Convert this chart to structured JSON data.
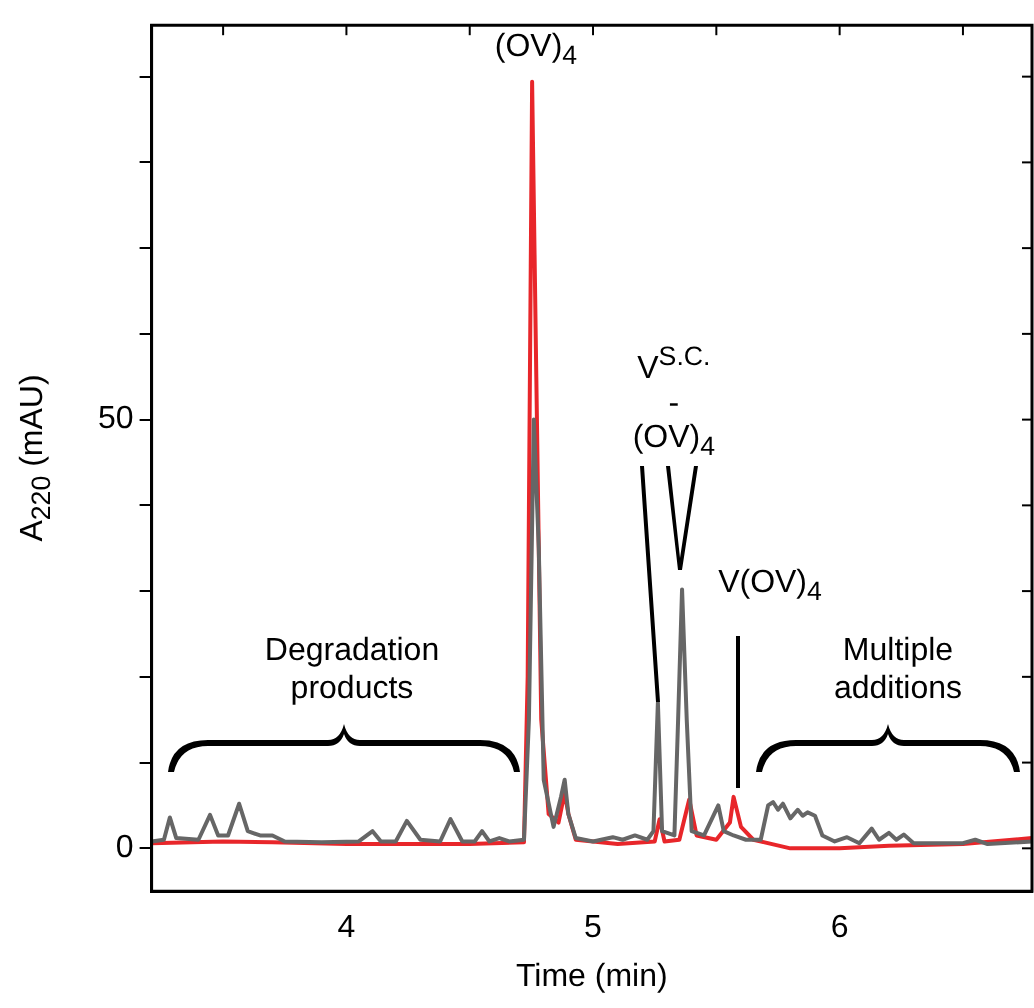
{
  "chart_data": {
    "type": "line",
    "xlabel": "Time (min)",
    "ylabel": "A$_{220}$ (mAU)",
    "xlim": [
      3.21,
      6.78
    ],
    "ylim": [
      -5,
      96
    ],
    "xticks": [
      {
        "value": 3.5,
        "label": null
      },
      4,
      {
        "value": 4.5,
        "label": null
      },
      5,
      {
        "value": 5.5,
        "label": null
      },
      6,
      {
        "value": 6.5,
        "label": null
      }
    ],
    "yticks": [
      0,
      {
        "value": 10,
        "label": null
      },
      {
        "value": 20,
        "label": null
      },
      {
        "value": 30,
        "label": null
      },
      {
        "value": 40,
        "label": null
      },
      50,
      {
        "value": 60,
        "label": null
      },
      {
        "value": 70,
        "label": null
      },
      {
        "value": 80,
        "label": null
      },
      {
        "value": 90,
        "label": null
      }
    ],
    "marker": "none",
    "line_style": "solid",
    "series": [
      {
        "color": "#666666",
        "x": [
          3.21,
          3.26,
          3.284,
          3.31,
          3.4,
          3.447,
          3.48,
          3.52,
          3.565,
          3.6,
          3.65,
          3.7,
          3.75,
          3.9,
          4.05,
          4.106,
          4.14,
          4.2,
          4.245,
          4.3,
          4.38,
          4.422,
          4.47,
          4.52,
          4.55,
          4.58,
          4.62,
          4.66,
          4.72,
          4.74,
          4.76,
          4.78,
          4.8,
          4.84,
          4.87,
          4.885,
          4.9,
          4.93,
          5.0,
          5.08,
          5.12,
          5.17,
          5.22,
          5.245,
          5.263,
          5.28,
          5.33,
          5.345,
          5.361,
          5.38,
          5.4,
          5.45,
          5.508,
          5.53,
          5.57,
          5.62,
          5.68,
          5.71,
          5.73,
          5.75,
          5.77,
          5.8,
          5.83,
          5.85,
          5.87,
          5.9,
          5.93,
          5.98,
          6.03,
          6.08,
          6.13,
          6.16,
          6.2,
          6.23,
          6.26,
          6.3,
          6.5,
          6.55,
          6.6,
          6.78
        ],
        "values": [
          0.8,
          1,
          3.6,
          1.2,
          1,
          3.9,
          1.5,
          1.5,
          5.2,
          2,
          1.5,
          1.5,
          0.8,
          0.7,
          0.8,
          2,
          0.8,
          0.8,
          3.2,
          1,
          0.8,
          3.4,
          0.8,
          0.8,
          2,
          0.8,
          1.2,
          0.8,
          1,
          15,
          50,
          35,
          8,
          2.5,
          6,
          8,
          4,
          1.2,
          0.8,
          1.3,
          1,
          1.5,
          1,
          2,
          17,
          2,
          1.5,
          15,
          30.2,
          15,
          2,
          1.5,
          5,
          2,
          1.5,
          1,
          1,
          5,
          5.4,
          4.5,
          5.2,
          3.5,
          4.5,
          3.8,
          4.2,
          3.8,
          1.5,
          0.8,
          1.3,
          0.6,
          2.3,
          1,
          1.8,
          1,
          1.6,
          0.6,
          0.6,
          1,
          0.5,
          0.8
        ]
      },
      {
        "color": "#e8262a",
        "x": [
          3.21,
          3.5,
          3.7,
          4.0,
          4.5,
          4.72,
          4.735,
          4.753,
          4.77,
          4.79,
          4.82,
          4.86,
          4.885,
          4.9,
          4.93,
          5.1,
          5.25,
          5.27,
          5.29,
          5.35,
          5.39,
          5.42,
          5.5,
          5.555,
          5.57,
          5.6,
          5.65,
          5.8,
          6.0,
          6.2,
          6.5,
          6.78
        ],
        "values": [
          0.6,
          0.8,
          0.7,
          0.5,
          0.5,
          0.7,
          20,
          89.4,
          55,
          15,
          4,
          3,
          6.5,
          4,
          1,
          0.5,
          0.8,
          3.4,
          0.8,
          1,
          5.7,
          1.5,
          1,
          3,
          6,
          2.5,
          1,
          0,
          0,
          0.3,
          0.5,
          1.2
        ]
      }
    ],
    "annotations": [
      "(OV)$_{4}$",
      "Degradation\nproducts",
      {
        "text": "V$^{S.C.}$\n-\n(OV)$_{4}$",
        "x": 5.263,
        "y": 17
      },
      "V(OV)$_{4}$",
      "Multiple\nadditions"
    ]
  }
}
